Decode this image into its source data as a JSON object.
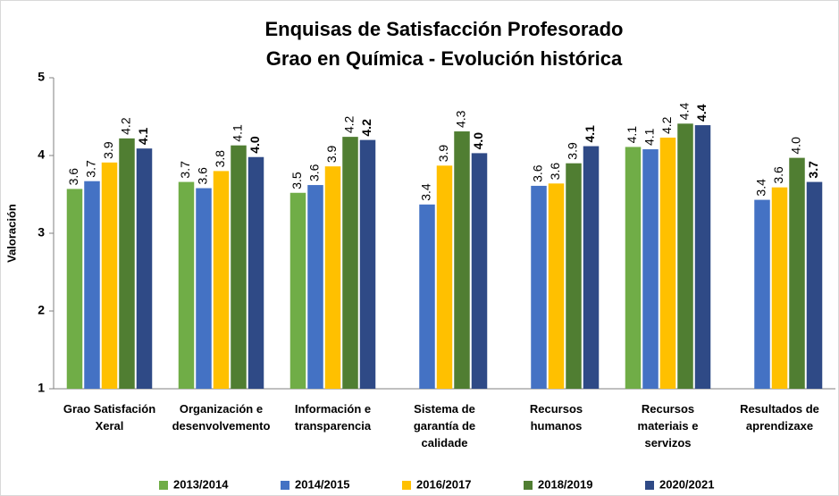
{
  "chart_data": {
    "type": "bar",
    "title": "Enquisas de Satisfacción Profesorado",
    "subtitle": "Grao en Química - Evolución histórica",
    "y_label": "Valoración",
    "categories": [
      "Grao Satisfación\nXeral",
      "Organización e\ndesenvolvemento",
      "Información e\ntransparencia",
      "Sistema de\ngarantía de\ncalidade",
      "Recursos\nhumanos",
      "Recursos\nmateriais e\nservizos",
      "Resultados de\naprendizaxe"
    ],
    "series": [
      {
        "name": "2013/2014",
        "color": "#70ad47",
        "values": [
          3.57,
          3.66,
          3.52,
          null,
          null,
          4.11,
          null
        ],
        "value_labels": [
          "3.6",
          "3.7",
          "3.5",
          null,
          null,
          "4.1",
          null
        ]
      },
      {
        "name": "2014/2015",
        "color": "#4472c4",
        "values": [
          3.67,
          3.58,
          3.62,
          3.37,
          3.61,
          4.08,
          3.43
        ],
        "value_labels": [
          "3.7",
          "3.6",
          "3.6",
          "3.4",
          "3.6",
          "4.1",
          "3.4"
        ]
      },
      {
        "name": "2016/2017",
        "color": "#ffc000",
        "values": [
          3.91,
          3.8,
          3.86,
          3.87,
          3.64,
          4.23,
          3.59
        ],
        "value_labels": [
          "3.9",
          "3.8",
          "3.9",
          "3.9",
          "3.6",
          "4.2",
          "3.6"
        ]
      },
      {
        "name": "2018/2019",
        "color": "#507e32",
        "values": [
          4.22,
          4.13,
          4.24,
          4.31,
          3.9,
          4.41,
          3.97
        ],
        "value_labels": [
          "4.2",
          "4.1",
          "4.2",
          "4.3",
          "3.9",
          "4.4",
          "4.0"
        ]
      },
      {
        "name": "2020/2021",
        "color": "#2f4a86",
        "values": [
          4.09,
          3.98,
          4.2,
          4.03,
          4.12,
          4.39,
          3.66
        ],
        "value_labels": [
          "4.1",
          "4.0",
          "4.2",
          "4.0",
          "4.1",
          "4.4",
          "3.7"
        ]
      }
    ],
    "ylim": [
      1,
      5
    ],
    "yticks": [
      1,
      2,
      3,
      4,
      5
    ],
    "grid": false,
    "legend": "bottom"
  }
}
